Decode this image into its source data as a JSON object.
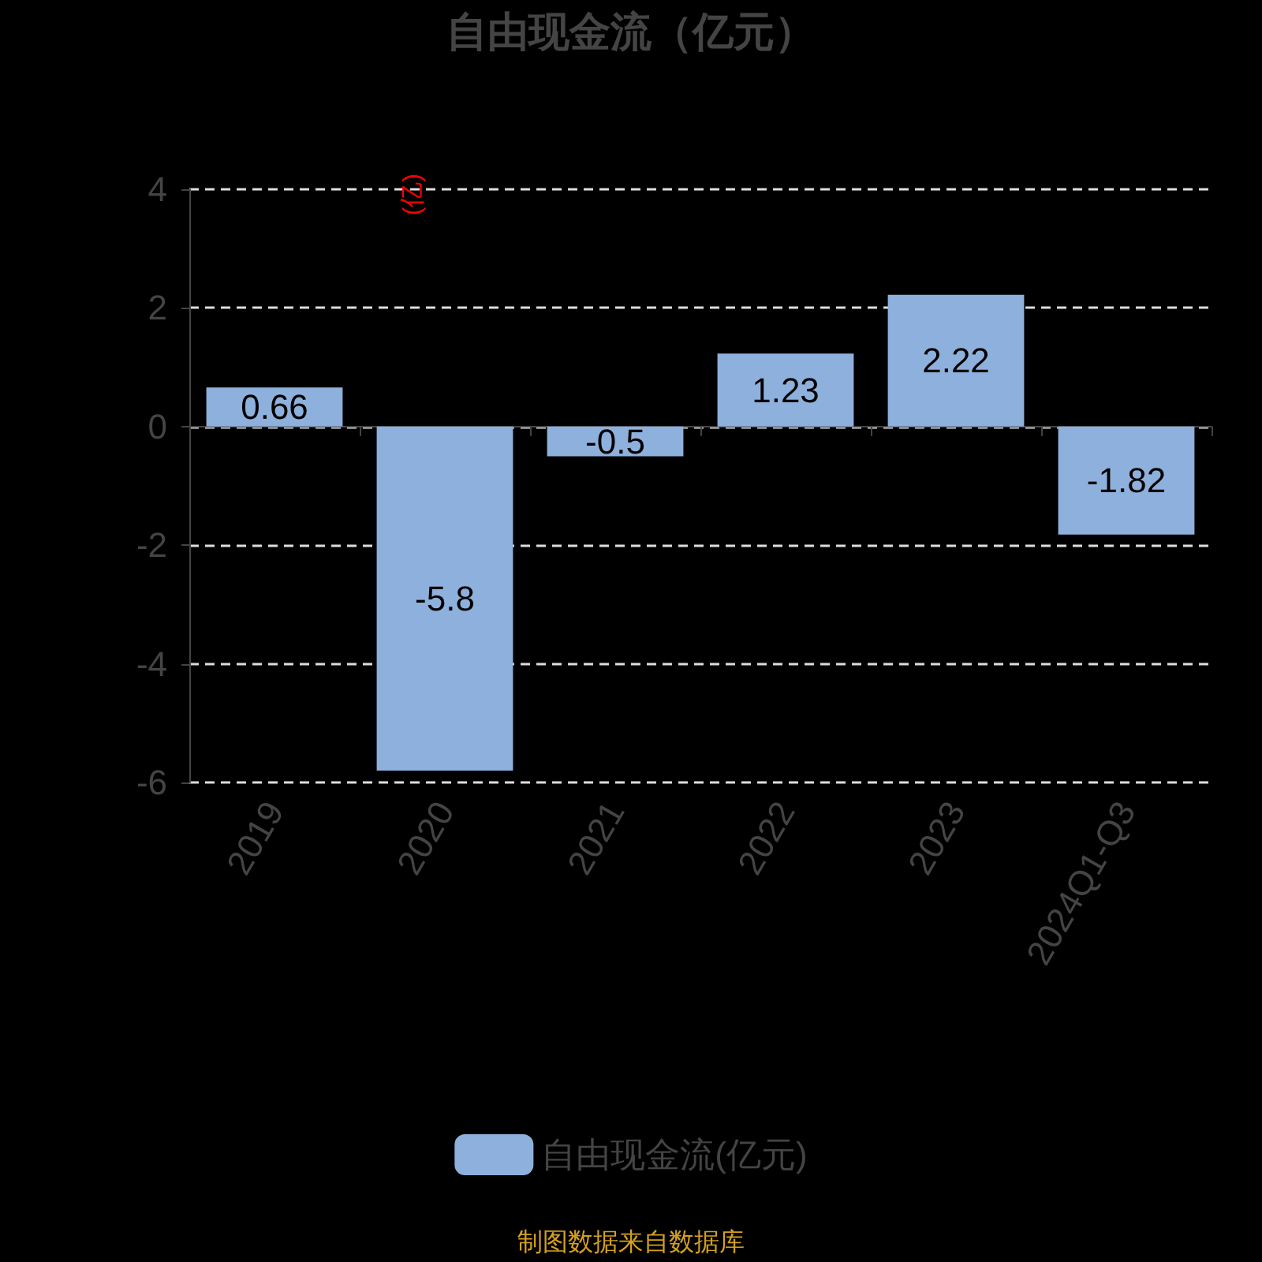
{
  "chart_data": {
    "type": "bar",
    "title": "自由现金流（亿元）",
    "ylabel": "(亿)",
    "categories": [
      "2019",
      "2020",
      "2021",
      "2022",
      "2023",
      "2024Q1-Q3"
    ],
    "series": [
      {
        "name": "自由现金流(亿元)",
        "color": "#8eb0dc",
        "values": [
          0.66,
          -5.8,
          -0.5,
          1.23,
          2.22,
          -1.82
        ]
      }
    ],
    "ylim": [
      -6,
      4
    ],
    "yticks": [
      -6,
      -4,
      -2,
      0,
      2,
      4
    ],
    "grid": "y",
    "legend": "bottom",
    "data_labels": true,
    "annotations": [
      "制图数据来自数据库"
    ]
  }
}
